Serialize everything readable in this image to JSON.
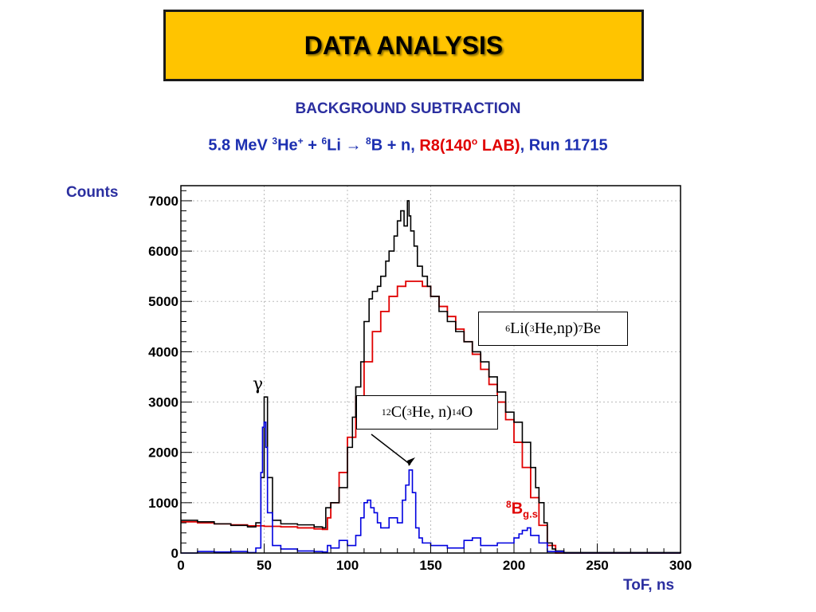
{
  "header": {
    "title": "DATA ANALYSIS"
  },
  "subtitle": "BACKGROUND SUBTRACTION",
  "reaction": {
    "energy": "5.8 MeV ",
    "he_mass": "3",
    "he_sym": "He",
    "he_charge": "+",
    "plus": " + ",
    "li_mass": "6",
    "li_sym": "Li ",
    "arrow": "→",
    "b_mass": "8",
    "b_sym": "B + n, ",
    "detector": "R8(140",
    "deg": "o",
    "lab": " LAB)",
    "run": ", Run 11715"
  },
  "annotations": {
    "li_reaction": {
      "m1": "6",
      "t1": "Li(",
      "m2": "3",
      "t2": "He,np)",
      "m3": "7",
      "t3": "Be"
    },
    "c_reaction": {
      "m1": "12",
      "t1": "C(",
      "m2": "3",
      "t2": "He, n)",
      "m3": "14",
      "t3": "O"
    },
    "gamma": "γ",
    "b8": {
      "mass": "8",
      "sym": "B",
      "state": "g.s"
    }
  },
  "colors": {
    "raw": "#000000",
    "fit": "#e00000",
    "subtracted": "#0000e0",
    "title_bg": "#ffc400",
    "text_blue": "#2b2fa0"
  },
  "chart_data": {
    "type": "line",
    "xlabel": "ToF, ns",
    "ylabel": "Counts",
    "xlim": [
      0,
      300
    ],
    "ylim": [
      0,
      7300
    ],
    "x_ticks": [
      0,
      50,
      100,
      150,
      200,
      250,
      300
    ],
    "y_ticks": [
      0,
      1000,
      2000,
      3000,
      4000,
      5000,
      6000,
      7000
    ],
    "grid": true,
    "series": [
      {
        "key": "raw",
        "style": "step",
        "x": [
          0,
          10,
          20,
          30,
          40,
          45,
          48,
          50,
          52,
          55,
          60,
          70,
          80,
          85,
          87,
          90,
          95,
          100,
          103,
          105,
          108,
          110,
          113,
          115,
          118,
          120,
          123,
          125,
          128,
          130,
          132,
          134,
          136,
          137,
          138,
          140,
          142,
          145,
          148,
          150,
          155,
          160,
          165,
          170,
          175,
          180,
          185,
          190,
          195,
          200,
          205,
          210,
          213,
          215,
          218,
          220,
          223,
          225,
          230,
          300
        ],
        "y": [
          650,
          620,
          580,
          550,
          520,
          600,
          1500,
          3100,
          1500,
          650,
          580,
          560,
          520,
          500,
          900,
          1000,
          1300,
          2100,
          2700,
          3300,
          3800,
          4600,
          5050,
          5200,
          5300,
          5500,
          5800,
          6000,
          6300,
          6600,
          6800,
          6500,
          7000,
          6700,
          6400,
          6100,
          5700,
          5500,
          5300,
          5100,
          4800,
          4600,
          4400,
          4200,
          4000,
          3800,
          3500,
          3200,
          2800,
          2600,
          2200,
          1700,
          1300,
          1000,
          600,
          200,
          80,
          40,
          10,
          0
        ]
      },
      {
        "key": "fit",
        "style": "step",
        "x": [
          0,
          10,
          20,
          30,
          40,
          50,
          60,
          70,
          80,
          85,
          88,
          90,
          95,
          100,
          105,
          110,
          115,
          120,
          125,
          130,
          135,
          140,
          145,
          150,
          155,
          160,
          165,
          170,
          175,
          180,
          185,
          190,
          195,
          200,
          205,
          210,
          215,
          220,
          225,
          300
        ],
        "y": [
          620,
          600,
          580,
          560,
          540,
          530,
          520,
          500,
          480,
          470,
          700,
          1000,
          1600,
          2300,
          3100,
          3800,
          4400,
          4800,
          5100,
          5300,
          5400,
          5400,
          5300,
          5100,
          4900,
          4700,
          4450,
          4200,
          3950,
          3650,
          3350,
          3000,
          2650,
          2200,
          1700,
          1100,
          550,
          150,
          0,
          0
        ]
      },
      {
        "key": "subtracted",
        "style": "step",
        "x": [
          0,
          10,
          20,
          30,
          40,
          45,
          48,
          49,
          50,
          51,
          52,
          55,
          60,
          70,
          80,
          85,
          88,
          90,
          95,
          100,
          105,
          108,
          110,
          112,
          114,
          116,
          118,
          120,
          125,
          130,
          133,
          135,
          137,
          139,
          141,
          143,
          145,
          150,
          160,
          170,
          175,
          180,
          190,
          200,
          203,
          205,
          208,
          210,
          215,
          220,
          230,
          300
        ],
        "y": [
          0,
          30,
          20,
          30,
          10,
          100,
          1600,
          2500,
          2600,
          2100,
          800,
          150,
          80,
          40,
          30,
          20,
          150,
          100,
          250,
          150,
          350,
          700,
          1000,
          1050,
          900,
          800,
          600,
          500,
          700,
          600,
          1050,
          1350,
          1650,
          1200,
          500,
          300,
          200,
          150,
          100,
          250,
          300,
          150,
          200,
          300,
          380,
          450,
          500,
          350,
          200,
          30,
          0,
          0
        ]
      }
    ]
  }
}
